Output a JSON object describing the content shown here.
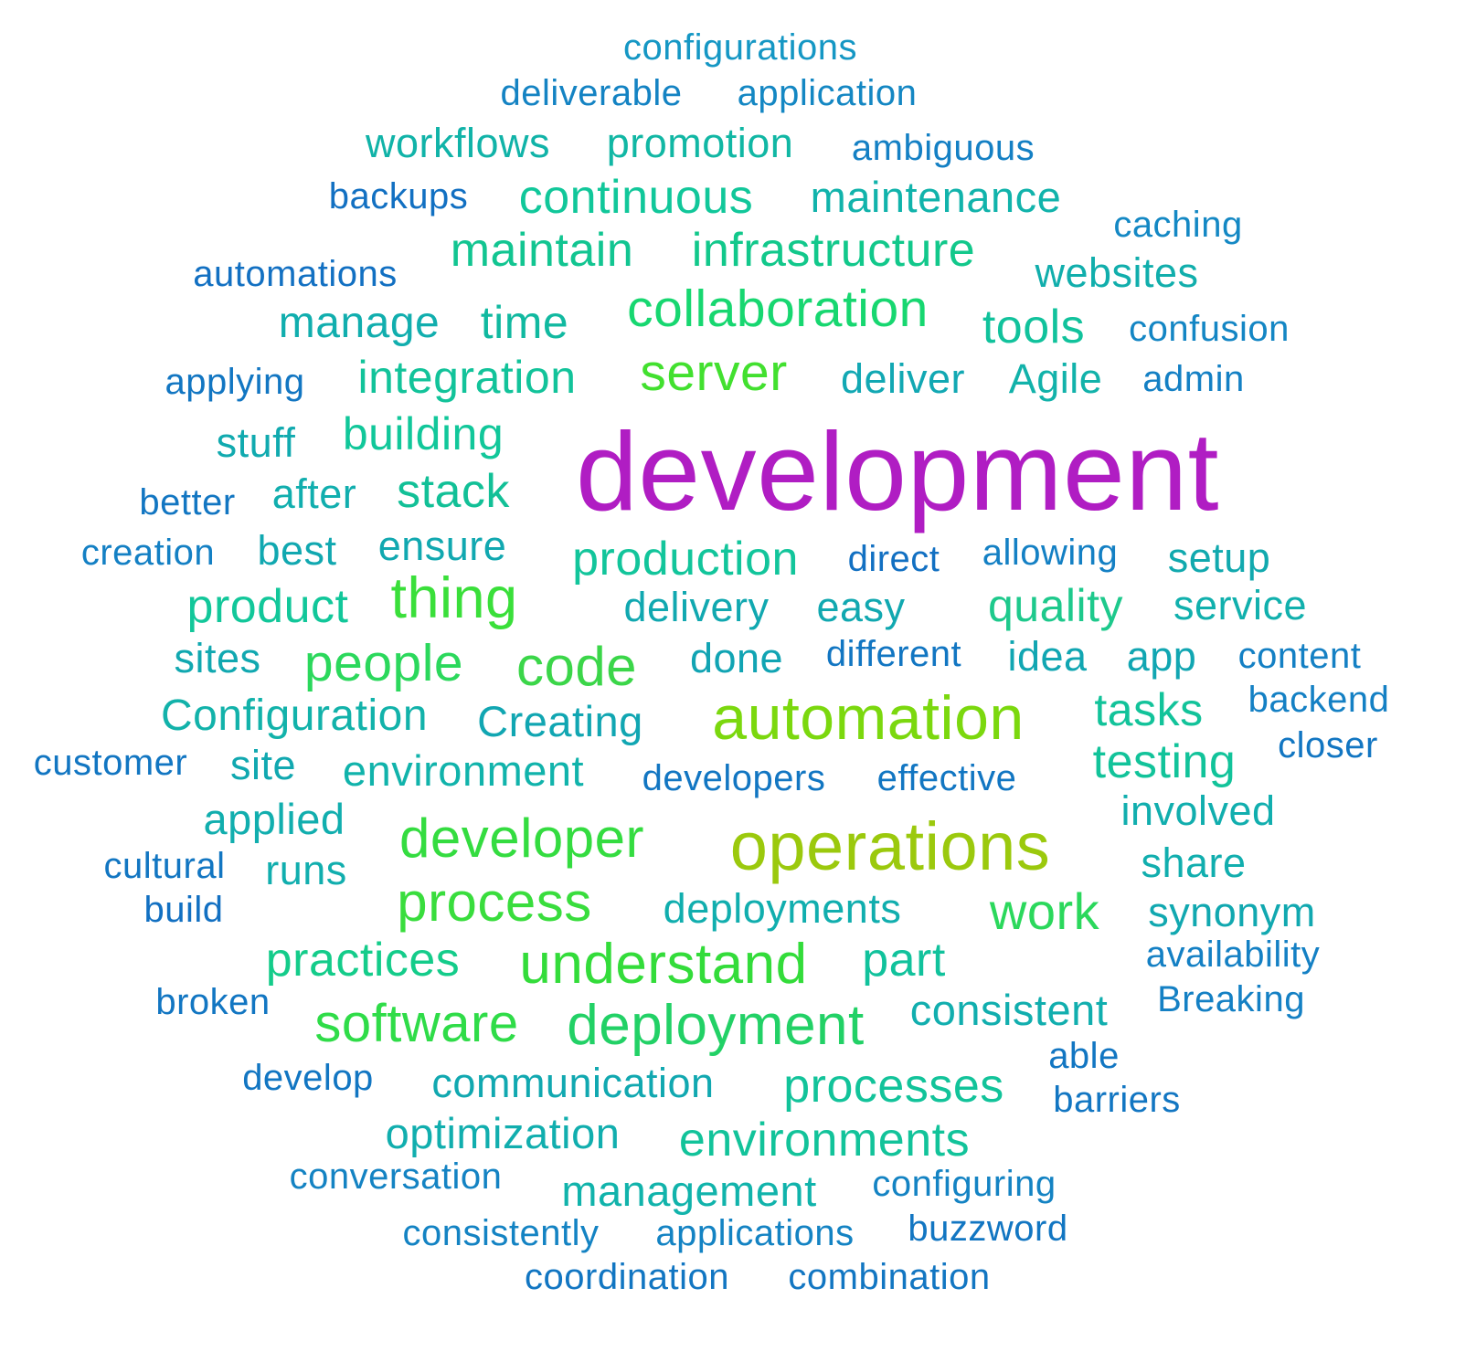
{
  "words": [
    {
      "text": "configurations",
      "color": "#1597c4"
    },
    {
      "text": "deliverable",
      "color": "#1483c3"
    },
    {
      "text": "application",
      "color": "#1487c3"
    },
    {
      "text": "workflows",
      "color": "#11b3a8"
    },
    {
      "text": "promotion",
      "color": "#11b7a4"
    },
    {
      "text": "ambiguous",
      "color": "#1480c4"
    },
    {
      "text": "backups",
      "color": "#1270c2"
    },
    {
      "text": "continuous",
      "color": "#11c79a"
    },
    {
      "text": "maintenance",
      "color": "#11b3ab"
    },
    {
      "text": "caching",
      "color": "#1488c4"
    },
    {
      "text": "automations",
      "color": "#1270c2"
    },
    {
      "text": "maintain",
      "color": "#12c591"
    },
    {
      "text": "infrastructure",
      "color": "#12c88b"
    },
    {
      "text": "websites",
      "color": "#11aeac"
    },
    {
      "text": "manage",
      "color": "#11aeae"
    },
    {
      "text": "time",
      "color": "#11b9a0"
    },
    {
      "text": "collaboration",
      "color": "#17d770"
    },
    {
      "text": "tools",
      "color": "#11c29c"
    },
    {
      "text": "confusion",
      "color": "#1486c4"
    },
    {
      "text": "applying",
      "color": "#1276c2"
    },
    {
      "text": "integration",
      "color": "#12c39a"
    },
    {
      "text": "server",
      "color": "#42e02f"
    },
    {
      "text": "deliver",
      "color": "#12a8b3"
    },
    {
      "text": "Agile",
      "color": "#12b2aa"
    },
    {
      "text": "admin",
      "color": "#1480c4"
    },
    {
      "text": "stuff",
      "color": "#11aaaf"
    },
    {
      "text": "building",
      "color": "#11c79a"
    },
    {
      "text": "development",
      "color": "#b01dc3"
    },
    {
      "text": "better",
      "color": "#1276c2"
    },
    {
      "text": "after",
      "color": "#11aeae"
    },
    {
      "text": "stack",
      "color": "#12c097"
    },
    {
      "text": "creation",
      "color": "#1480c4"
    },
    {
      "text": "best",
      "color": "#11a8b0"
    },
    {
      "text": "ensure",
      "color": "#11a8b0"
    },
    {
      "text": "production",
      "color": "#12c59b"
    },
    {
      "text": "direct",
      "color": "#1270c2"
    },
    {
      "text": "allowing",
      "color": "#1480c4"
    },
    {
      "text": "setup",
      "color": "#11a9ae"
    },
    {
      "text": "product",
      "color": "#12c79a"
    },
    {
      "text": "thing",
      "color": "#3adf3a"
    },
    {
      "text": "delivery",
      "color": "#11a8b0"
    },
    {
      "text": "easy",
      "color": "#11a8b0"
    },
    {
      "text": "quality",
      "color": "#1ec98c"
    },
    {
      "text": "service",
      "color": "#11b0ad"
    },
    {
      "text": "sites",
      "color": "#11a8b0"
    },
    {
      "text": "people",
      "color": "#2bd85c"
    },
    {
      "text": "code",
      "color": "#3bd649"
    },
    {
      "text": "done",
      "color": "#11a4b3"
    },
    {
      "text": "different",
      "color": "#1276c2"
    },
    {
      "text": "idea",
      "color": "#11a6b2"
    },
    {
      "text": "app",
      "color": "#11a6b2"
    },
    {
      "text": "content",
      "color": "#1480c4"
    },
    {
      "text": "Configuration",
      "color": "#12b2aa"
    },
    {
      "text": "Creating",
      "color": "#11a6b2"
    },
    {
      "text": "automation",
      "color": "#7bd80e"
    },
    {
      "text": "tasks",
      "color": "#12c39a"
    },
    {
      "text": "backend",
      "color": "#1480c4"
    },
    {
      "text": "closer",
      "color": "#1276c2"
    },
    {
      "text": "customer",
      "color": "#1276c2"
    },
    {
      "text": "site",
      "color": "#11a8b0"
    },
    {
      "text": "environment",
      "color": "#11b3ab"
    },
    {
      "text": "developers",
      "color": "#1276c2"
    },
    {
      "text": "effective",
      "color": "#1276c2"
    },
    {
      "text": "testing",
      "color": "#12c39a"
    },
    {
      "text": "involved",
      "color": "#11aeae"
    },
    {
      "text": "applied",
      "color": "#11aeae"
    },
    {
      "text": "developer",
      "color": "#34dc40"
    },
    {
      "text": "operations",
      "color": "#9bc90d"
    },
    {
      "text": "cultural",
      "color": "#1276c2"
    },
    {
      "text": "runs",
      "color": "#11aeae"
    },
    {
      "text": "share",
      "color": "#11aeae"
    },
    {
      "text": "build",
      "color": "#1270c2"
    },
    {
      "text": "process",
      "color": "#39dd3d"
    },
    {
      "text": "deployments",
      "color": "#11aeae"
    },
    {
      "text": "work",
      "color": "#2bd85c"
    },
    {
      "text": "synonym",
      "color": "#11a8b0"
    },
    {
      "text": "practices",
      "color": "#14cc8a"
    },
    {
      "text": "understand",
      "color": "#33dc3a"
    },
    {
      "text": "part",
      "color": "#11c29c"
    },
    {
      "text": "availability",
      "color": "#1480c4"
    },
    {
      "text": "broken",
      "color": "#1276c2"
    },
    {
      "text": "Breaking",
      "color": "#1480c4"
    },
    {
      "text": "software",
      "color": "#2fdc48"
    },
    {
      "text": "deployment",
      "color": "#22d166"
    },
    {
      "text": "consistent",
      "color": "#11aeae"
    },
    {
      "text": "able",
      "color": "#1276c2"
    },
    {
      "text": "develop",
      "color": "#1276c2"
    },
    {
      "text": "communication",
      "color": "#11a8b0"
    },
    {
      "text": "processes",
      "color": "#12c39a"
    },
    {
      "text": "barriers",
      "color": "#1276c2"
    },
    {
      "text": "optimization",
      "color": "#11aeae"
    },
    {
      "text": "environments",
      "color": "#12c39a"
    },
    {
      "text": "conversation",
      "color": "#1483c3"
    },
    {
      "text": "management",
      "color": "#11b3ab"
    },
    {
      "text": "configuring",
      "color": "#1483c3"
    },
    {
      "text": "consistently",
      "color": "#1483c3"
    },
    {
      "text": "applications",
      "color": "#1483c3"
    },
    {
      "text": "buzzword",
      "color": "#1276c2"
    },
    {
      "text": "coordination",
      "color": "#1276c2"
    },
    {
      "text": "combination",
      "color": "#1276c2"
    }
  ]
}
